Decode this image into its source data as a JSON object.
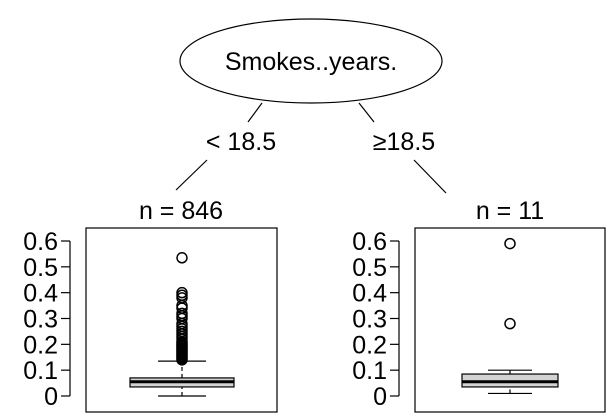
{
  "tree": {
    "root": {
      "label": "Smokes..years."
    },
    "splits": [
      {
        "label": "< 18.5"
      },
      {
        "label": "≥18.5"
      }
    ]
  },
  "chart_data": [
    {
      "type": "boxplot",
      "title": "n = 846",
      "ylim": [
        0,
        0.6
      ],
      "yticks": [
        "0",
        "0.1",
        "0.2",
        "0.3",
        "0.4",
        "0.5",
        "0.6"
      ],
      "box": {
        "whisker_low": 0.0,
        "q1": 0.035,
        "median": 0.055,
        "q3": 0.07,
        "whisker_high": 0.135
      },
      "outliers": [
        0.14,
        0.145,
        0.15,
        0.155,
        0.16,
        0.165,
        0.17,
        0.175,
        0.18,
        0.185,
        0.19,
        0.195,
        0.2,
        0.205,
        0.21,
        0.22,
        0.23,
        0.24,
        0.25,
        0.26,
        0.27,
        0.28,
        0.3,
        0.31,
        0.32,
        0.34,
        0.35,
        0.38,
        0.39,
        0.4,
        0.535
      ]
    },
    {
      "type": "boxplot",
      "title": "n = 11",
      "ylim": [
        0,
        0.6
      ],
      "yticks": [
        "0",
        "0.1",
        "0.2",
        "0.3",
        "0.4",
        "0.5",
        "0.6"
      ],
      "box": {
        "whisker_low": 0.01,
        "q1": 0.035,
        "median": 0.055,
        "q3": 0.085,
        "whisker_high": 0.1
      },
      "outliers": [
        0.28,
        0.59
      ]
    }
  ]
}
